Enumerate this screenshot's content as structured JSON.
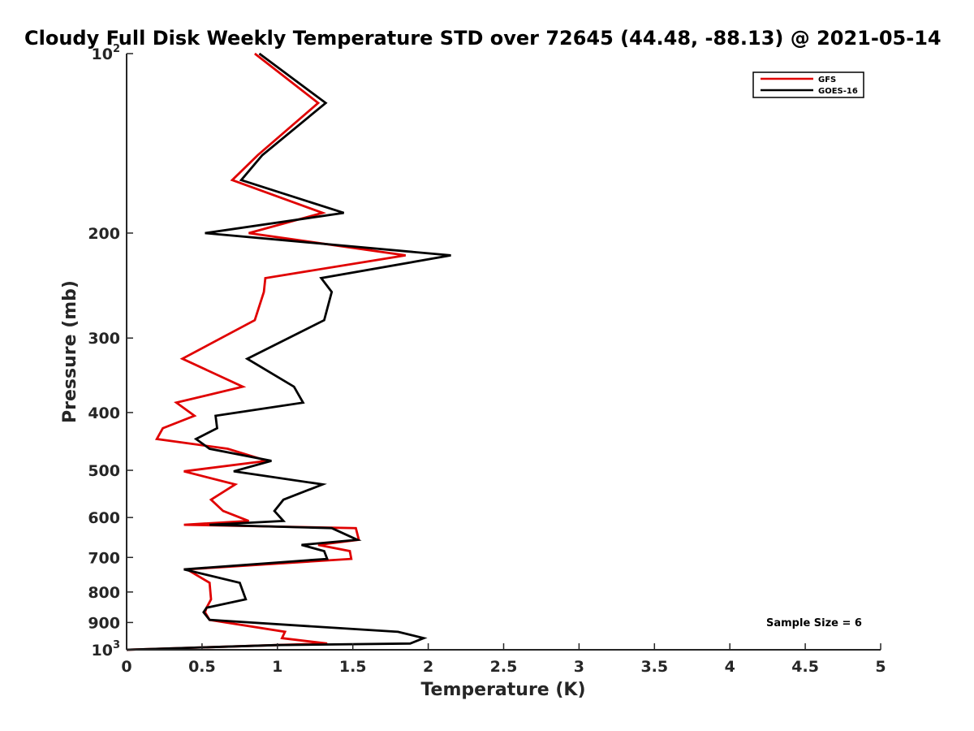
{
  "chart_data": {
    "type": "line",
    "title": "Cloudy Full Disk Weekly Temperature STD over 72645 (44.48, -88.13) @ 2021-05-14",
    "xlabel": "Temperature (K)",
    "ylabel": "Pressure (mb)",
    "xlim": [
      0,
      5
    ],
    "ylim": [
      1000,
      100
    ],
    "y_scale": "log",
    "y_reversed": true,
    "x_ticks": [
      "0",
      "0.5",
      "1",
      "1.5",
      "2",
      "2.5",
      "3",
      "3.5",
      "4",
      "4.5",
      "5"
    ],
    "y_ticks": [
      {
        "value": 100,
        "label": "10",
        "sup": "2"
      },
      {
        "value": 200,
        "label": "200",
        "sup": ""
      },
      {
        "value": 300,
        "label": "300",
        "sup": ""
      },
      {
        "value": 400,
        "label": "400",
        "sup": ""
      },
      {
        "value": 500,
        "label": "500",
        "sup": ""
      },
      {
        "value": 600,
        "label": "600",
        "sup": ""
      },
      {
        "value": 700,
        "label": "700",
        "sup": ""
      },
      {
        "value": 800,
        "label": "800",
        "sup": ""
      },
      {
        "value": 900,
        "label": "900",
        "sup": ""
      },
      {
        "value": 1000,
        "label": "10",
        "sup": "3"
      }
    ],
    "legend_position": "top-right",
    "annotation": "Sample Size = 6",
    "series": [
      {
        "name": "GFS",
        "color": "#e00000",
        "x": [
          0.85,
          1.27,
          0.87,
          0.7,
          1.3,
          0.81,
          1.85,
          0.92,
          0.91,
          0.85,
          0.37,
          0.77,
          0.33,
          0.45,
          0.24,
          0.2,
          0.67,
          0.93,
          0.38,
          0.72,
          0.56,
          0.64,
          0.81,
          0.38,
          1.52,
          1.54,
          1.27,
          1.48,
          1.49,
          0.4,
          0.55,
          0.56,
          0.53,
          0.52,
          0.55,
          1.05,
          1.03,
          1.33,
          1.0,
          0.0
        ],
        "y": [
          100,
          121,
          148,
          163,
          185,
          200,
          218,
          238,
          251,
          280,
          325,
          362,
          385,
          405,
          425,
          443,
          460,
          482,
          502,
          528,
          560,
          585,
          608,
          617,
          625,
          654,
          667,
          683,
          704,
          733,
          772,
          823,
          850,
          865,
          891,
          933,
          956,
          976,
          982,
          1000
        ]
      },
      {
        "name": "GOES-16",
        "color": "#000000",
        "x": [
          0.88,
          1.32,
          0.9,
          0.76,
          1.44,
          0.52,
          2.15,
          1.29,
          1.36,
          1.31,
          0.8,
          1.11,
          1.17,
          0.59,
          0.6,
          0.46,
          0.55,
          0.96,
          0.71,
          1.3,
          1.04,
          0.98,
          1.04,
          0.55,
          1.36,
          1.53,
          1.16,
          1.31,
          1.33,
          0.38,
          0.75,
          0.79,
          0.53,
          0.51,
          0.55,
          1.8,
          1.97,
          1.88,
          1.0,
          0.0
        ],
        "y": [
          100,
          121,
          148,
          163,
          185,
          200,
          218,
          238,
          251,
          280,
          325,
          362,
          385,
          405,
          425,
          443,
          460,
          482,
          502,
          528,
          560,
          585,
          608,
          617,
          625,
          654,
          667,
          683,
          704,
          733,
          772,
          823,
          850,
          865,
          891,
          933,
          956,
          976,
          982,
          1000
        ]
      }
    ]
  }
}
